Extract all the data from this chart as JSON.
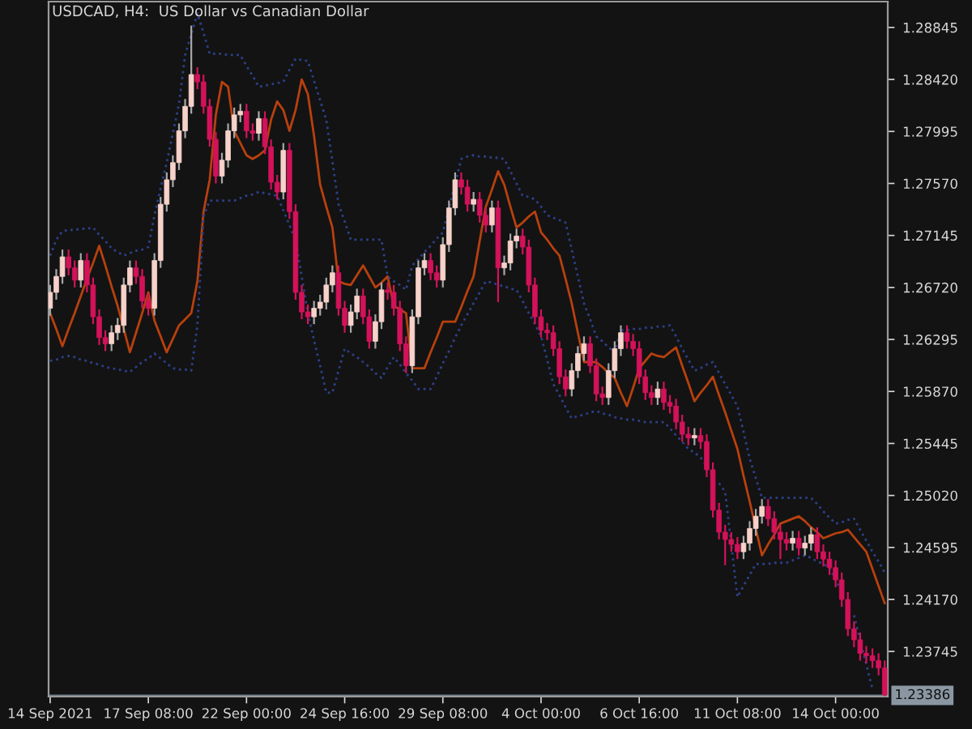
{
  "chart_data": {
    "type": "candlestick",
    "title": "USDCAD, H4:  US Dollar vs Canadian Dollar",
    "categories": [
      "14 Sep 2021",
      null,
      null,
      null,
      null,
      null,
      null,
      null,
      null,
      null,
      null,
      null,
      null,
      null,
      null,
      null,
      "17 Sep 08:00",
      null,
      null,
      null,
      null,
      null,
      null,
      null,
      null,
      null,
      null,
      null,
      null,
      null,
      null,
      null,
      "22 Sep 00:00",
      null,
      null,
      null,
      null,
      null,
      null,
      null,
      null,
      null,
      null,
      null,
      null,
      null,
      null,
      null,
      "24 Sep 16:00",
      null,
      null,
      null,
      null,
      null,
      null,
      null,
      null,
      null,
      null,
      null,
      null,
      null,
      null,
      null,
      "29 Sep 08:00",
      null,
      null,
      null,
      null,
      null,
      null,
      null,
      null,
      null,
      null,
      null,
      null,
      null,
      null,
      null,
      "4 Oct 00:00",
      null,
      null,
      null,
      null,
      null,
      null,
      null,
      null,
      null,
      null,
      null,
      null,
      null,
      null,
      null,
      "6 Oct 16:00",
      null,
      null,
      null,
      null,
      null,
      null,
      null,
      null,
      null,
      null,
      null,
      null,
      null,
      null,
      null,
      "11 Oct 08:00",
      null,
      null,
      null,
      null,
      null,
      null,
      null,
      null,
      null,
      null,
      null,
      null,
      null,
      null,
      null,
      "14 Oct 00:00",
      null,
      null,
      null,
      null,
      null,
      null,
      null,
      null
    ],
    "ohlc": [
      [
        1.2655,
        1.2674,
        1.2649,
        1.2668
      ],
      [
        1.2668,
        1.2687,
        1.2662,
        1.2681
      ],
      [
        1.2681,
        1.2703,
        1.2675,
        1.2697
      ],
      [
        1.2697,
        1.2703,
        1.2682,
        1.2688
      ],
      [
        1.2688,
        1.2694,
        1.2672,
        1.2678
      ],
      [
        1.2678,
        1.27,
        1.2672,
        1.2694
      ],
      [
        1.2694,
        1.27,
        1.2668,
        1.2674
      ],
      [
        1.2674,
        1.268,
        1.2642,
        1.2648
      ],
      [
        1.2648,
        1.2654,
        1.2625,
        1.2631
      ],
      [
        1.2631,
        1.2637,
        1.262,
        1.2626
      ],
      [
        1.2626,
        1.2641,
        1.262,
        1.2635
      ],
      [
        1.2635,
        1.2647,
        1.2629,
        1.2641
      ],
      [
        1.2641,
        1.268,
        1.2635,
        1.2674
      ],
      [
        1.2674,
        1.2694,
        1.2668,
        1.2688
      ],
      [
        1.2688,
        1.2694,
        1.2675,
        1.2681
      ],
      [
        1.2681,
        1.2687,
        1.2655,
        1.2661
      ],
      [
        1.2661,
        1.2667,
        1.2649,
        1.2655
      ],
      [
        1.2655,
        1.27,
        1.2649,
        1.2694
      ],
      [
        1.2694,
        1.2746,
        1.2688,
        1.274
      ],
      [
        1.274,
        1.2766,
        1.2734,
        1.276
      ],
      [
        1.276,
        1.278,
        1.2754,
        1.2774
      ],
      [
        1.2774,
        1.2806,
        1.2768,
        1.28
      ],
      [
        1.28,
        1.2826,
        1.2794,
        1.282
      ],
      [
        1.282,
        1.2886,
        1.2814,
        1.2846
      ],
      [
        1.2846,
        1.2852,
        1.2834,
        1.284
      ],
      [
        1.284,
        1.2846,
        1.2814,
        1.282
      ],
      [
        1.282,
        1.2826,
        1.2787,
        1.2793
      ],
      [
        1.2793,
        1.2799,
        1.2757,
        1.2763
      ],
      [
        1.2763,
        1.2782,
        1.2757,
        1.2776
      ],
      [
        1.2776,
        1.2806,
        1.277,
        1.28
      ],
      [
        1.28,
        1.2819,
        1.2794,
        1.2813
      ],
      [
        1.2813,
        1.2822,
        1.2807,
        1.2816
      ],
      [
        1.2816,
        1.2822,
        1.2794,
        1.28
      ],
      [
        1.28,
        1.2806,
        1.2792,
        1.2798
      ],
      [
        1.2798,
        1.2816,
        1.2792,
        1.281
      ],
      [
        1.281,
        1.2816,
        1.2781,
        1.2787
      ],
      [
        1.2787,
        1.2793,
        1.2752,
        1.2758
      ],
      [
        1.2758,
        1.2764,
        1.2744,
        1.275
      ],
      [
        1.275,
        1.279,
        1.2744,
        1.2784
      ],
      [
        1.2784,
        1.279,
        1.2728,
        1.2734
      ],
      [
        1.2734,
        1.274,
        1.2662,
        1.2668
      ],
      [
        1.2668,
        1.2674,
        1.2646,
        1.2652
      ],
      [
        1.2652,
        1.2658,
        1.2642,
        1.2648
      ],
      [
        1.2648,
        1.2661,
        1.2642,
        1.2655
      ],
      [
        1.2655,
        1.2666,
        1.2649,
        1.266
      ],
      [
        1.266,
        1.268,
        1.2654,
        1.2674
      ],
      [
        1.2674,
        1.269,
        1.2668,
        1.2684
      ],
      [
        1.2684,
        1.269,
        1.2649,
        1.2655
      ],
      [
        1.2655,
        1.2661,
        1.2635,
        1.2641
      ],
      [
        1.2641,
        1.2658,
        1.2635,
        1.2652
      ],
      [
        1.2652,
        1.2671,
        1.2646,
        1.2665
      ],
      [
        1.2665,
        1.2671,
        1.2642,
        1.2648
      ],
      [
        1.2648,
        1.2654,
        1.2622,
        1.2628
      ],
      [
        1.2628,
        1.265,
        1.2622,
        1.2644
      ],
      [
        1.2644,
        1.2676,
        1.2638,
        1.267
      ],
      [
        1.267,
        1.2676,
        1.2662,
        1.2668
      ],
      [
        1.2668,
        1.2674,
        1.2649,
        1.2655
      ],
      [
        1.2655,
        1.2661,
        1.262,
        1.2626
      ],
      [
        1.2626,
        1.2632,
        1.2602,
        1.2608
      ],
      [
        1.2608,
        1.2654,
        1.2602,
        1.2648
      ],
      [
        1.2648,
        1.2694,
        1.2642,
        1.2688
      ],
      [
        1.2688,
        1.27,
        1.2682,
        1.2694
      ],
      [
        1.2694,
        1.27,
        1.2678,
        1.2684
      ],
      [
        1.2684,
        1.269,
        1.2672,
        1.2678
      ],
      [
        1.2678,
        1.2713,
        1.2672,
        1.2707
      ],
      [
        1.2707,
        1.2743,
        1.2701,
        1.2737
      ],
      [
        1.2737,
        1.2766,
        1.2731,
        1.276
      ],
      [
        1.276,
        1.2766,
        1.2748,
        1.2754
      ],
      [
        1.2754,
        1.276,
        1.2734,
        1.274
      ],
      [
        1.274,
        1.275,
        1.2734,
        1.2744
      ],
      [
        1.2744,
        1.275,
        1.2725,
        1.2731
      ],
      [
        1.2731,
        1.2737,
        1.2717,
        1.2723
      ],
      [
        1.2723,
        1.2743,
        1.2717,
        1.2737
      ],
      [
        1.2737,
        1.2743,
        1.266,
        1.2688
      ],
      [
        1.2688,
        1.2698,
        1.2682,
        1.2692
      ],
      [
        1.2692,
        1.2716,
        1.2686,
        1.271
      ],
      [
        1.271,
        1.272,
        1.2704,
        1.2714
      ],
      [
        1.2714,
        1.272,
        1.2699,
        1.2705
      ],
      [
        1.2705,
        1.2711,
        1.2668,
        1.2674
      ],
      [
        1.2674,
        1.268,
        1.2642,
        1.2648
      ],
      [
        1.2648,
        1.2654,
        1.2631,
        1.2637
      ],
      [
        1.2637,
        1.2643,
        1.2629,
        1.2635
      ],
      [
        1.2635,
        1.2641,
        1.2616,
        1.2622
      ],
      [
        1.2622,
        1.2628,
        1.2593,
        1.2599
      ],
      [
        1.2599,
        1.2605,
        1.2583,
        1.2589
      ],
      [
        1.2589,
        1.261,
        1.2583,
        1.2604
      ],
      [
        1.2604,
        1.2624,
        1.2598,
        1.2618
      ],
      [
        1.2618,
        1.2632,
        1.2612,
        1.2626
      ],
      [
        1.2626,
        1.2632,
        1.2602,
        1.2608
      ],
      [
        1.2608,
        1.2614,
        1.2579,
        1.2585
      ],
      [
        1.2585,
        1.2591,
        1.2576,
        1.2582
      ],
      [
        1.2582,
        1.261,
        1.2576,
        1.2604
      ],
      [
        1.2604,
        1.2628,
        1.2598,
        1.2622
      ],
      [
        1.2622,
        1.2641,
        1.2616,
        1.2635
      ],
      [
        1.2635,
        1.2641,
        1.2622,
        1.2628
      ],
      [
        1.2628,
        1.2634,
        1.2616,
        1.2622
      ],
      [
        1.2622,
        1.2628,
        1.2593,
        1.2599
      ],
      [
        1.2599,
        1.2605,
        1.258,
        1.2586
      ],
      [
        1.2586,
        1.2592,
        1.2576,
        1.2582
      ],
      [
        1.2582,
        1.2595,
        1.2576,
        1.2589
      ],
      [
        1.2589,
        1.2595,
        1.2572,
        1.2578
      ],
      [
        1.2578,
        1.2584,
        1.2569,
        1.2575
      ],
      [
        1.2575,
        1.2581,
        1.2556,
        1.2562
      ],
      [
        1.2562,
        1.2568,
        1.2546,
        1.2552
      ],
      [
        1.2552,
        1.2558,
        1.2543,
        1.2549
      ],
      [
        1.2549,
        1.2557,
        1.2543,
        1.2551
      ],
      [
        1.2551,
        1.2557,
        1.254,
        1.2546
      ],
      [
        1.2546,
        1.2552,
        1.2517,
        1.2523
      ],
      [
        1.2523,
        1.2529,
        1.2484,
        1.249
      ],
      [
        1.249,
        1.2496,
        1.2466,
        1.2472
      ],
      [
        1.2472,
        1.2478,
        1.2445,
        1.2466
      ],
      [
        1.2466,
        1.2472,
        1.2456,
        1.2462
      ],
      [
        1.2462,
        1.2468,
        1.245,
        1.2456
      ],
      [
        1.2456,
        1.2469,
        1.245,
        1.2463
      ],
      [
        1.2463,
        1.2481,
        1.2457,
        1.2475
      ],
      [
        1.2475,
        1.2491,
        1.2469,
        1.2485
      ],
      [
        1.2485,
        1.2499,
        1.2479,
        1.2493
      ],
      [
        1.2493,
        1.2499,
        1.2477,
        1.2483
      ],
      [
        1.2483,
        1.2489,
        1.2466,
        1.2472
      ],
      [
        1.2472,
        1.2478,
        1.245,
        1.2466
      ],
      [
        1.2466,
        1.2472,
        1.2457,
        1.2463
      ],
      [
        1.2463,
        1.2473,
        1.2457,
        1.2467
      ],
      [
        1.2467,
        1.2473,
        1.2453,
        1.2459
      ],
      [
        1.2459,
        1.2469,
        1.2453,
        1.2463
      ],
      [
        1.2463,
        1.2476,
        1.2457,
        1.247
      ],
      [
        1.247,
        1.2476,
        1.245,
        1.2456
      ],
      [
        1.2456,
        1.2462,
        1.2444,
        1.245
      ],
      [
        1.245,
        1.2456,
        1.2437,
        1.2443
      ],
      [
        1.2443,
        1.2449,
        1.2427,
        1.2433
      ],
      [
        1.2433,
        1.2439,
        1.2411,
        1.2417
      ],
      [
        1.2417,
        1.2423,
        1.2387,
        1.2393
      ],
      [
        1.2393,
        1.2399,
        1.2378,
        1.2384
      ],
      [
        1.2384,
        1.239,
        1.2367,
        1.2373
      ],
      [
        1.2373,
        1.2379,
        1.2365,
        1.2371
      ],
      [
        1.2371,
        1.2377,
        1.2361,
        1.2367
      ],
      [
        1.2367,
        1.2373,
        1.2355,
        1.2361
      ],
      [
        1.2361,
        1.2367,
        1.2338,
        1.2339
      ]
    ],
    "series": [
      {
        "type": "line",
        "color": "#b8400e",
        "line_style": "solid",
        "values": [
          1.2651,
          1.2638,
          1.2624,
          1.2638,
          1.2651,
          1.2665,
          1.2679,
          1.2692,
          1.2706,
          1.269,
          1.2673,
          1.2657,
          1.2638,
          1.2619,
          1.2635,
          1.2651,
          1.2668,
          1.2645,
          1.2632,
          1.2619,
          1.263,
          1.2641,
          1.2646,
          1.2651,
          1.2677,
          1.2734,
          1.276,
          1.2813,
          1.284,
          1.2836,
          1.28,
          1.279,
          1.278,
          1.2777,
          1.278,
          1.2784,
          1.2809,
          1.2824,
          1.2817,
          1.28,
          1.2817,
          1.2842,
          1.283,
          1.2796,
          1.2756,
          1.2738,
          1.2721,
          1.2677,
          1.2675,
          1.2674,
          1.2682,
          1.269,
          1.2681,
          1.2672,
          1.2676,
          1.2681,
          1.2657,
          1.2654,
          1.2651,
          1.2606,
          1.2606,
          1.2606,
          1.2619,
          1.2631,
          1.2644,
          1.2644,
          1.2644,
          1.2656,
          1.2669,
          1.2681,
          1.271,
          1.2738,
          1.2752,
          1.2767,
          1.2756,
          1.2738,
          1.2721,
          1.2725,
          1.273,
          1.2734,
          1.2717,
          1.2711,
          1.2704,
          1.2698,
          1.2679,
          1.2659,
          1.2635,
          1.2611,
          1.2611,
          1.2611,
          1.2607,
          1.2602,
          1.2598,
          1.2586,
          1.2575,
          1.259,
          1.2606,
          1.2612,
          1.2618,
          1.2616,
          1.2615,
          1.2619,
          1.2623,
          1.2608,
          1.2594,
          1.2579,
          1.2586,
          1.2592,
          1.2599,
          1.2584,
          1.257,
          1.2555,
          1.254,
          1.2518,
          1.2497,
          1.2475,
          1.2453,
          1.2462,
          1.247,
          1.2479,
          1.2481,
          1.2483,
          1.2485,
          1.2481,
          1.2476,
          1.2472,
          1.2467,
          1.2469,
          1.2471,
          1.2472,
          1.2474,
          1.2468,
          1.2462,
          1.2456,
          1.2442,
          1.2428,
          1.2414
        ]
      },
      {
        "type": "line",
        "color": "#2c4088",
        "line_style": "dotted",
        "values": [
          1.2698,
          1.2711,
          1.2718,
          1.2719,
          1.2719,
          1.272,
          1.272,
          1.2721,
          1.2715,
          1.271,
          1.2704,
          1.2701,
          1.2698,
          1.27,
          1.2702,
          1.2703,
          1.2705,
          1.2731,
          1.2753,
          1.2774,
          1.2798,
          1.2822,
          1.2862,
          1.2879,
          1.2896,
          1.288,
          1.2863,
          1.2863,
          1.2863,
          1.2862,
          1.2862,
          1.2862,
          1.2853,
          1.2845,
          1.2836,
          1.2837,
          1.2838,
          1.2839,
          1.284,
          1.285,
          1.2859,
          1.2858,
          1.2857,
          1.2841,
          1.2825,
          1.2809,
          1.2775,
          1.274,
          1.2726,
          1.2711,
          1.2711,
          1.2711,
          1.2711,
          1.2711,
          1.2711,
          1.2681,
          1.2677,
          1.2674,
          1.267,
          1.269,
          1.2695,
          1.2701,
          1.2706,
          1.2712,
          1.2717,
          1.2737,
          1.2757,
          1.2777,
          1.2779,
          1.278,
          1.2779,
          1.2779,
          1.2778,
          1.2778,
          1.2777,
          1.2767,
          1.2757,
          1.2747,
          1.2746,
          1.2744,
          1.2738,
          1.2731,
          1.2729,
          1.2727,
          1.2725,
          1.2703,
          1.2681,
          1.2659,
          1.2646,
          1.2632,
          1.2628,
          1.2623,
          1.2619,
          1.2637,
          1.2637,
          1.2638,
          1.2638,
          1.2639,
          1.2639,
          1.264,
          1.264,
          1.2641,
          1.2632,
          1.2622,
          1.2613,
          1.2604,
          1.2606,
          1.2609,
          1.2611,
          1.2602,
          1.2593,
          1.2584,
          1.2575,
          1.2554,
          1.2532,
          1.2516,
          1.25,
          1.25,
          1.25,
          1.25,
          1.25,
          1.25,
          1.25,
          1.25,
          1.25,
          1.2495,
          1.2489,
          1.2484,
          1.2479,
          1.248,
          1.2482,
          1.2483,
          1.2474,
          1.2465,
          1.2456,
          1.2448,
          1.2439
        ]
      },
      {
        "type": "line",
        "color": "#2c4088",
        "line_style": "dotted",
        "values": [
          1.2612,
          1.2613,
          1.2615,
          1.2616,
          1.2615,
          1.2613,
          1.2612,
          1.261,
          1.2609,
          1.2607,
          1.2606,
          1.2605,
          1.2604,
          1.2603,
          1.2607,
          1.2611,
          1.2614,
          1.2618,
          1.2614,
          1.261,
          1.2606,
          1.2605,
          1.2605,
          1.2604,
          1.2641,
          1.273,
          1.2743,
          1.2743,
          1.2743,
          1.2743,
          1.2743,
          1.2745,
          1.2747,
          1.2748,
          1.275,
          1.2749,
          1.2748,
          1.2747,
          1.2735,
          1.2723,
          1.2711,
          1.2681,
          1.2651,
          1.2629,
          1.2608,
          1.2586,
          1.2586,
          1.2604,
          1.2622,
          1.2618,
          1.2615,
          1.2611,
          1.2607,
          1.2602,
          1.2598,
          1.2607,
          1.2615,
          1.2609,
          1.2602,
          1.2596,
          1.2589,
          1.2589,
          1.2589,
          1.2599,
          1.261,
          1.262,
          1.2631,
          1.2641,
          1.265,
          1.2659,
          1.2668,
          1.2677,
          1.2676,
          1.2674,
          1.2673,
          1.2671,
          1.267,
          1.2661,
          1.2651,
          1.2642,
          1.2632,
          1.2613,
          1.2593,
          1.2584,
          1.2574,
          1.2565,
          1.2567,
          1.2568,
          1.257,
          1.2571,
          1.2569,
          1.2568,
          1.2566,
          1.2565,
          1.2564,
          1.2564,
          1.2563,
          1.2562,
          1.2562,
          1.2562,
          1.2562,
          1.2557,
          1.2551,
          1.2546,
          1.254,
          1.2537,
          1.2533,
          1.2526,
          null,
          1.2512,
          1.2505,
          1.2462,
          1.2419,
          1.2428,
          1.2437,
          1.2446,
          1.2446,
          1.2446,
          1.2447,
          1.2447,
          1.2447,
          1.2449,
          1.2451,
          1.2453,
          1.2451,
          1.2448,
          1.2446,
          1.2443,
          1.2433,
          1.2424,
          null,
          1.2404,
          1.2384,
          1.2364,
          1.2344,
          null,
          null
        ]
      }
    ],
    "ylim": [
      1.23376,
      1.29056
    ],
    "yticks": [
      {
        "value": 1.28845,
        "label": "1.28845"
      },
      {
        "value": 1.2842,
        "label": "1.28420"
      },
      {
        "value": 1.27995,
        "label": "1.27995"
      },
      {
        "value": 1.2757,
        "label": "1.27570"
      },
      {
        "value": 1.27145,
        "label": "1.27145"
      },
      {
        "value": 1.2672,
        "label": "1.26720"
      },
      {
        "value": 1.26295,
        "label": "1.26295"
      },
      {
        "value": 1.2587,
        "label": "1.25870"
      },
      {
        "value": 1.25445,
        "label": "1.25445"
      },
      {
        "value": 1.2502,
        "label": "1.25020"
      },
      {
        "value": 1.24595,
        "label": "1.24595"
      },
      {
        "value": 1.2417,
        "label": "1.24170"
      },
      {
        "value": 1.23745,
        "label": "1.23745"
      }
    ],
    "ref_lines": [
      {
        "axis": "y",
        "value": 1.23386,
        "label": "1.23386",
        "color": "#6f7b87"
      }
    ],
    "grid": false,
    "legend": false
  }
}
